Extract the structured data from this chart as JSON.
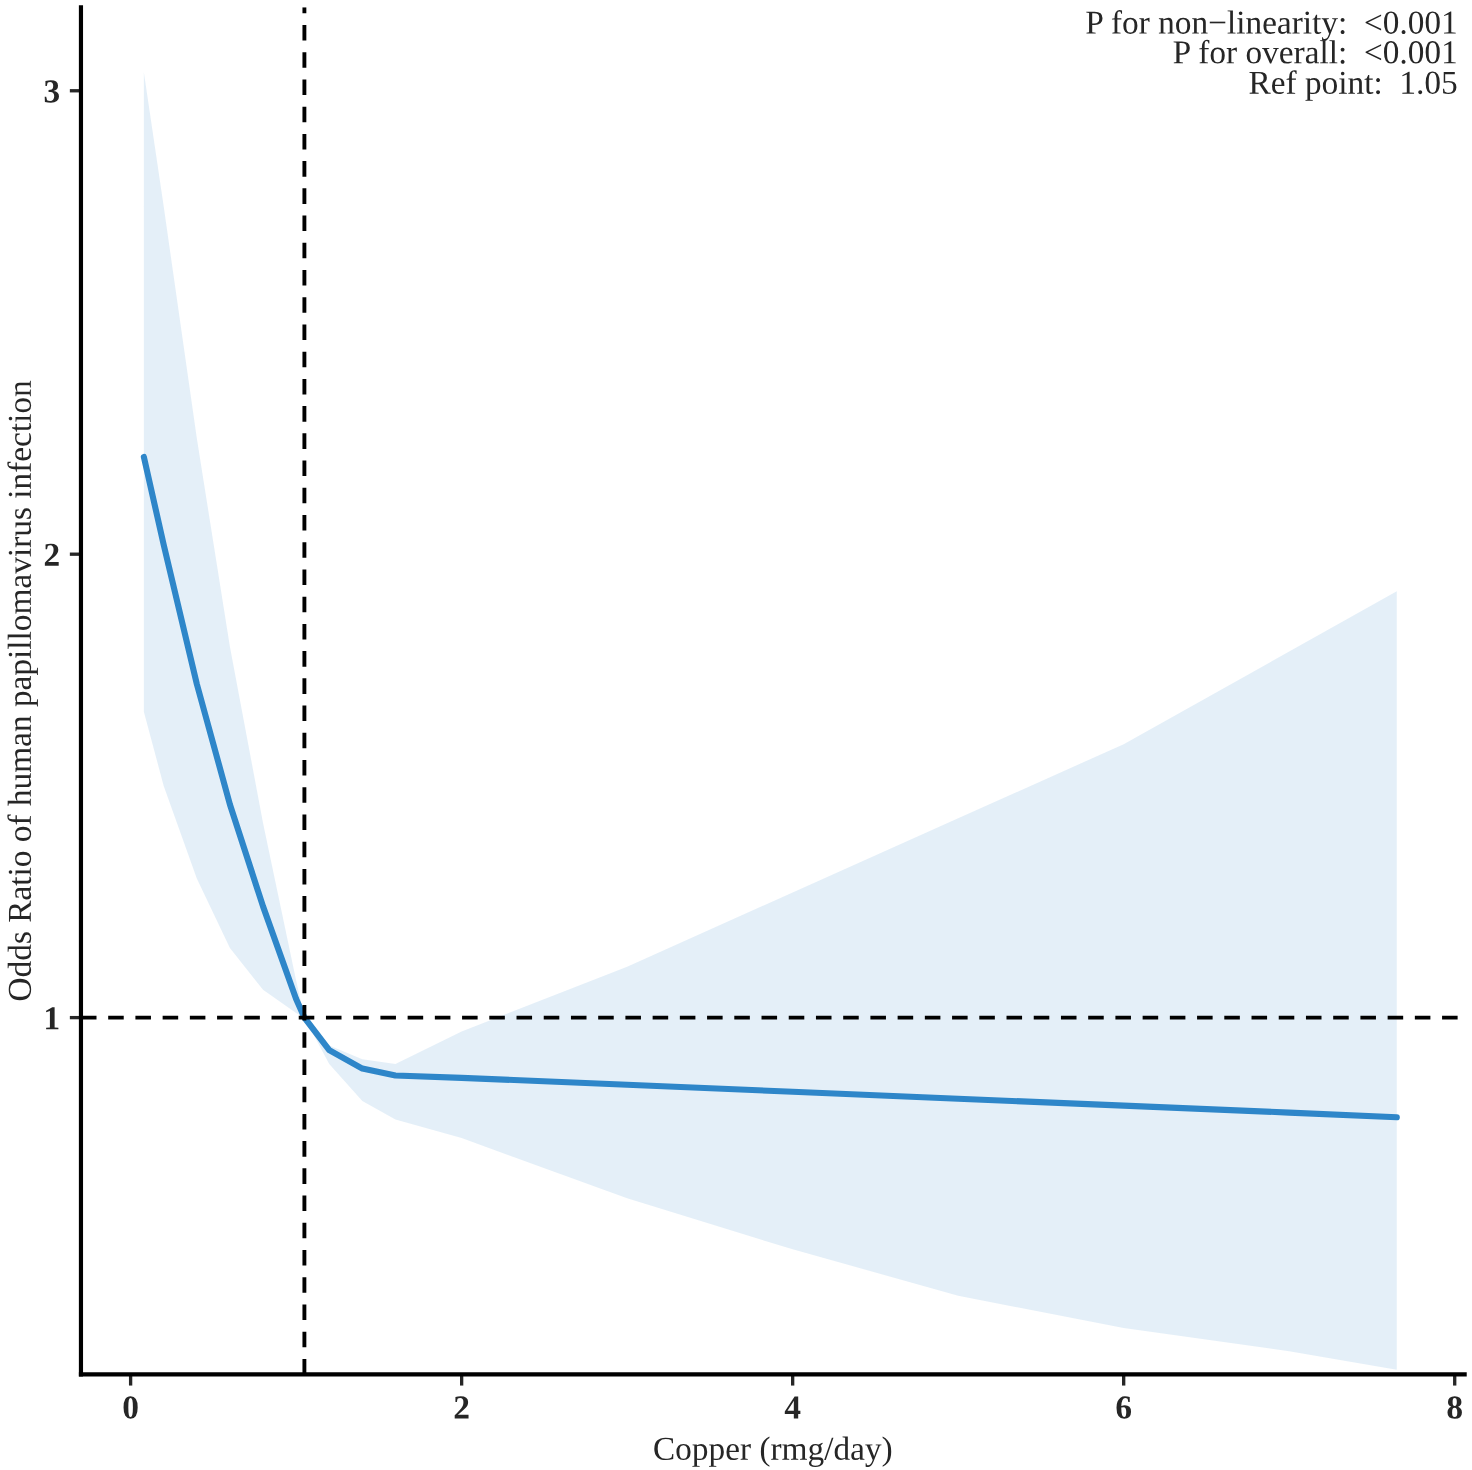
{
  "chart_data": {
    "type": "line",
    "xlabel": "Copper (rmg/day)",
    "ylabel": "Odds Ratio of human papillomavirus infection",
    "annotations": [
      "P for non−linearity:  <0.001",
      "P for overall:  <0.001",
      "Ref point:  1.05"
    ],
    "x": [
      0.08,
      0.2,
      0.4,
      0.6,
      0.8,
      1.0,
      1.05,
      1.2,
      1.4,
      1.6,
      2,
      3,
      4,
      5,
      6,
      7,
      7.65
    ],
    "series": [
      {
        "color": "#2e86c9",
        "values": [
          2.21,
          2.02,
          1.72,
          1.46,
          1.24,
          1.04,
          1.0,
          0.93,
          0.89,
          0.875,
          0.87,
          0.855,
          0.84,
          0.825,
          0.81,
          0.795,
          0.785
        ],
        "upper": [
          3.04,
          2.75,
          2.25,
          1.8,
          1.42,
          1.08,
          1.0,
          0.94,
          0.91,
          0.9,
          0.97,
          1.11,
          1.27,
          1.43,
          1.59,
          1.79,
          1.92
        ],
        "lower": [
          1.66,
          1.5,
          1.3,
          1.15,
          1.06,
          1.01,
          1.0,
          0.9,
          0.82,
          0.78,
          0.74,
          0.61,
          0.5,
          0.4,
          0.33,
          0.28,
          0.24
        ]
      }
    ],
    "xlim": [
      -0.3,
      8.06
    ],
    "ylim": [
      0.23,
      3.18
    ],
    "xticks": [
      0,
      2,
      4,
      6,
      8
    ],
    "yticks": [
      1,
      2,
      3
    ],
    "ref_lines": [
      {
        "axis": "x",
        "value": 1.05,
        "color": "#000000",
        "line_style": "dashed"
      },
      {
        "axis": "y",
        "value": 1,
        "color": "#000000",
        "line_style": "dashed"
      }
    ],
    "grid": false,
    "legend": false
  }
}
